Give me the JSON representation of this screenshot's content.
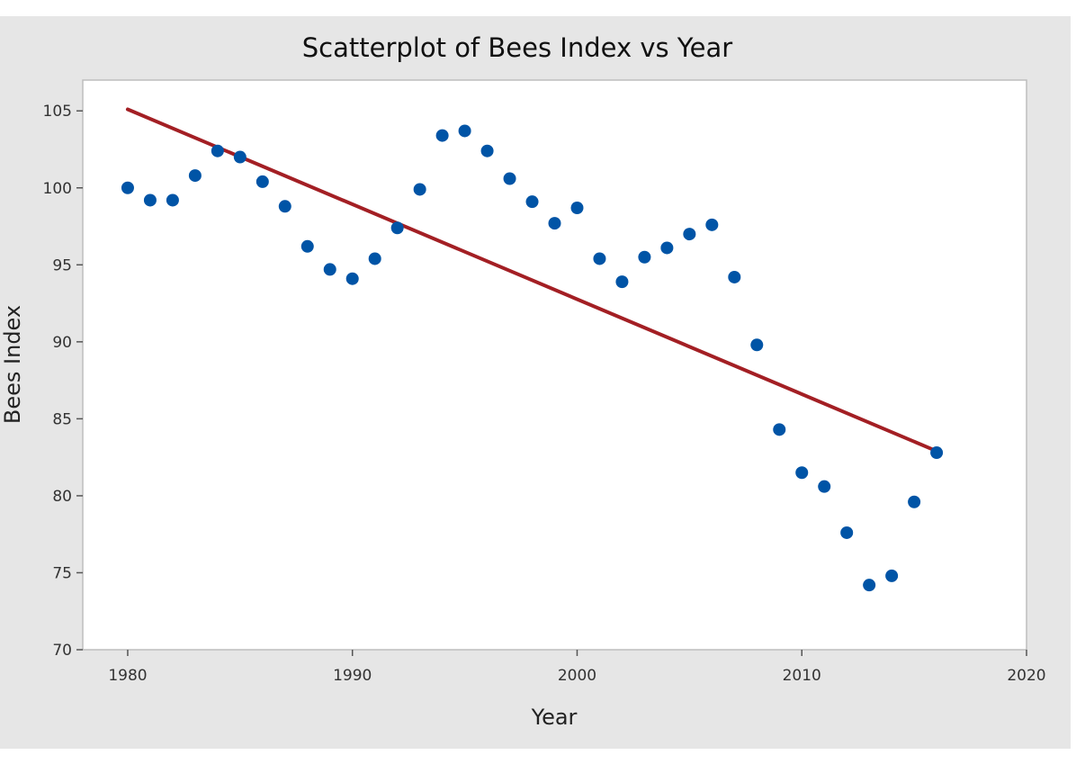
{
  "chart_data": {
    "type": "scatter",
    "title": "Scatterplot of Bees Index vs Year",
    "xlabel": "Year",
    "ylabel": "Bees Index",
    "xlim": [
      1978,
      2020
    ],
    "ylim": [
      70,
      107
    ],
    "x_ticks": [
      1980,
      1990,
      2000,
      2010,
      2020
    ],
    "y_ticks": [
      70,
      75,
      80,
      85,
      90,
      95,
      100,
      105
    ],
    "grid": false,
    "colors": {
      "background": "#e6e6e6",
      "plot_area": "#ffffff",
      "points": "#0054a6",
      "fit_line": "#a31f24"
    },
    "series": [
      {
        "x": [
          1980,
          1981,
          1982,
          1983,
          1984,
          1985,
          1986,
          1987,
          1988,
          1989,
          1990,
          1991,
          1992,
          1993,
          1994,
          1995,
          1996,
          1997,
          1998,
          1999,
          2000,
          2001,
          2002,
          2003,
          2004,
          2005,
          2006,
          2007,
          2008,
          2009,
          2010,
          2011,
          2012,
          2013,
          2014,
          2015,
          2016
        ],
        "y": [
          100.0,
          99.2,
          99.2,
          100.8,
          102.4,
          102.0,
          100.4,
          98.8,
          96.2,
          94.7,
          94.1,
          95.4,
          97.4,
          99.9,
          103.4,
          103.7,
          102.4,
          100.6,
          99.1,
          97.7,
          98.7,
          95.4,
          93.9,
          95.5,
          96.1,
          97.0,
          97.6,
          94.2,
          89.8,
          84.3,
          81.5,
          80.6,
          77.6,
          74.2,
          74.8,
          79.6,
          82.8
        ]
      }
    ],
    "fit_line": {
      "x": [
        1980,
        2016
      ],
      "y": [
        105.1,
        82.9
      ]
    }
  }
}
